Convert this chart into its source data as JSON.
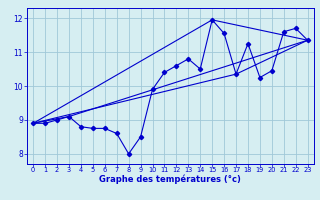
{
  "bg_color": "#d6eef2",
  "grid_color": "#a0c8d8",
  "line_color": "#0000cd",
  "xlabel": "Graphe des températures (°c)",
  "xlim": [
    -0.5,
    23.5
  ],
  "ylim": [
    7.7,
    12.3
  ],
  "yticks": [
    8,
    9,
    10,
    11,
    12
  ],
  "xticks": [
    0,
    1,
    2,
    3,
    4,
    5,
    6,
    7,
    8,
    9,
    10,
    11,
    12,
    13,
    14,
    15,
    16,
    17,
    18,
    19,
    20,
    21,
    22,
    23
  ],
  "series1_x": [
    0,
    1,
    2,
    3,
    4,
    5,
    6,
    7,
    8,
    9,
    10,
    11,
    12,
    13,
    14,
    15,
    16,
    17,
    18,
    19,
    20,
    21,
    22,
    23
  ],
  "series1_y": [
    8.9,
    8.9,
    9.0,
    9.1,
    8.8,
    8.75,
    8.75,
    8.6,
    8.0,
    8.5,
    9.9,
    10.4,
    10.6,
    10.8,
    10.5,
    11.95,
    11.55,
    10.35,
    11.25,
    10.25,
    10.45,
    11.6,
    11.7,
    11.35
  ],
  "series2_x": [
    0,
    3,
    23
  ],
  "series2_y": [
    8.9,
    9.1,
    11.35
  ],
  "series3_x": [
    0,
    15,
    23
  ],
  "series3_y": [
    8.9,
    11.95,
    11.35
  ],
  "series4_x": [
    0,
    17,
    23
  ],
  "series4_y": [
    8.9,
    10.35,
    11.35
  ],
  "xlabel_fontsize": 6.0,
  "xtick_fontsize": 4.8,
  "ytick_fontsize": 5.5,
  "marker_size": 2.2,
  "linewidth": 0.8
}
